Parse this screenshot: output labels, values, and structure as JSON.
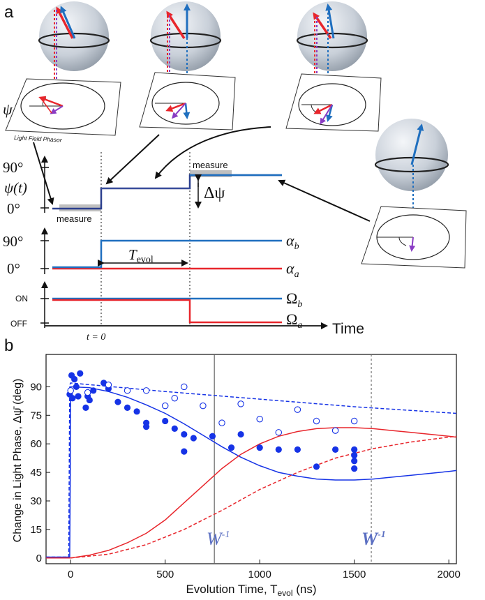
{
  "panel_a": {
    "label": "a",
    "phasor_caption": "Light Field Phasor",
    "psi_symbol": "ψ",
    "psi_axis_label": "ψ(t)",
    "psi_ticks": [
      "90°",
      "0°"
    ],
    "alpha_ticks": [
      "90°",
      "0°"
    ],
    "omega_ticks": [
      "ON",
      "OFF"
    ],
    "measure_label_1": "measure",
    "measure_label_2": "measure",
    "delta_psi_label": "Δψ",
    "tevol_label": "T",
    "tevol_sub": "evol",
    "alpha_b_label": "α",
    "alpha_b_sub": "b",
    "alpha_a_label": "α",
    "alpha_a_sub": "a",
    "omega_b_label": "Ω",
    "omega_b_sub": "b",
    "omega_a_label": "Ω",
    "omega_a_sub": "a",
    "time_label": "Time",
    "t0_label": "t = 0",
    "colors": {
      "red": "#e8262c",
      "blue": "#1f6fbf",
      "navy": "#2b3f8e",
      "purple": "#8a3cc4"
    }
  },
  "panel_b": {
    "label": "b",
    "w_label_1": "W",
    "w_label_2": "W",
    "w_sup": "-1"
  },
  "chart_data": {
    "type": "scatter",
    "xlabel": "Evolution Time, T",
    "xlabel_sub": "evol",
    "xlabel_unit": " (ns)",
    "ylabel": "Change in Light Phase, Δψ̄ (deg)",
    "xlim": [
      -130,
      2040
    ],
    "ylim": [
      -3,
      107
    ],
    "x_ticks": [
      0,
      500,
      1000,
      1500,
      2000
    ],
    "y_ticks": [
      0,
      15,
      30,
      45,
      60,
      75,
      90
    ],
    "vlines": [
      {
        "x": 760,
        "style": "solid"
      },
      {
        "x": 1590,
        "style": "dotted"
      }
    ],
    "series": [
      {
        "kind": "filled-points",
        "color": "#1633e6",
        "points": [
          [
            -5,
            86
          ],
          [
            5,
            96
          ],
          [
            10,
            84
          ],
          [
            20,
            94
          ],
          [
            30,
            90
          ],
          [
            40,
            85
          ],
          [
            50,
            97
          ],
          [
            80,
            79
          ],
          [
            90,
            85
          ],
          [
            100,
            83
          ],
          [
            120,
            88
          ],
          [
            175,
            92
          ],
          [
            200,
            89
          ],
          [
            250,
            82
          ],
          [
            300,
            79
          ],
          [
            350,
            77
          ],
          [
            400,
            71
          ],
          [
            400,
            69
          ],
          [
            500,
            72
          ],
          [
            550,
            68
          ],
          [
            600,
            65
          ],
          [
            600,
            56
          ],
          [
            650,
            63
          ],
          [
            750,
            64
          ],
          [
            850,
            58
          ],
          [
            900,
            65
          ],
          [
            1000,
            58
          ],
          [
            1100,
            57
          ],
          [
            1200,
            57
          ],
          [
            1300,
            48
          ],
          [
            1400,
            57
          ],
          [
            1500,
            57
          ],
          [
            1500,
            54
          ],
          [
            1500,
            51
          ],
          [
            1500,
            47
          ]
        ]
      },
      {
        "kind": "open-points",
        "color": "#1633e6",
        "points": [
          [
            0,
            88
          ],
          [
            90,
            87
          ],
          [
            200,
            91
          ],
          [
            300,
            88
          ],
          [
            400,
            88
          ],
          [
            500,
            80
          ],
          [
            550,
            84
          ],
          [
            600,
            90
          ],
          [
            700,
            80
          ],
          [
            800,
            71
          ],
          [
            900,
            81
          ],
          [
            1000,
            73
          ],
          [
            1100,
            66
          ],
          [
            1200,
            78
          ],
          [
            1300,
            72
          ],
          [
            1400,
            67
          ],
          [
            1500,
            72
          ]
        ]
      },
      {
        "kind": "line",
        "style": "solid",
        "color": "#1633e6",
        "x": [
          -130,
          -5,
          -1,
          0,
          100,
          200,
          300,
          400,
          500,
          600,
          700,
          800,
          900,
          1000,
          1100,
          1200,
          1300,
          1400,
          1500,
          1600,
          1700,
          1800,
          1900,
          2000,
          2040
        ],
        "y": [
          0.5,
          0.5,
          60,
          90,
          89.5,
          87.5,
          84.5,
          80.5,
          76,
          70.5,
          64.5,
          58.5,
          53,
          48.5,
          45,
          43,
          41.5,
          41,
          41,
          41.5,
          42.5,
          43.5,
          44.5,
          45.5,
          46
        ]
      },
      {
        "kind": "line",
        "style": "dashed",
        "color": "#1633e6",
        "x": [
          -130,
          -10,
          -5,
          0,
          500,
          1000,
          1500,
          2040
        ],
        "y": [
          0.5,
          0.5,
          91,
          92,
          87.5,
          83.5,
          79.5,
          76
        ]
      },
      {
        "kind": "line",
        "style": "solid",
        "color": "#e8262c",
        "x": [
          -130,
          0,
          100,
          200,
          300,
          400,
          500,
          600,
          700,
          800,
          900,
          1000,
          1100,
          1200,
          1300,
          1400,
          1500,
          1600,
          1700,
          1800,
          1900,
          2000,
          2040
        ],
        "y": [
          0,
          0,
          1.5,
          4,
          8,
          13,
          20,
          29,
          38,
          47,
          54.5,
          60,
          64,
          66.5,
          68,
          68.5,
          68.5,
          68,
          67,
          66,
          65,
          64,
          63.5
        ]
      },
      {
        "kind": "line",
        "style": "dashed",
        "color": "#e8262c",
        "x": [
          0,
          200,
          400,
          600,
          800,
          1000,
          1200,
          1400,
          1600,
          1800,
          2000,
          2040
        ],
        "y": [
          0,
          2,
          7,
          15,
          25,
          36,
          45,
          52.5,
          57.5,
          61,
          63.5,
          64
        ]
      }
    ]
  }
}
